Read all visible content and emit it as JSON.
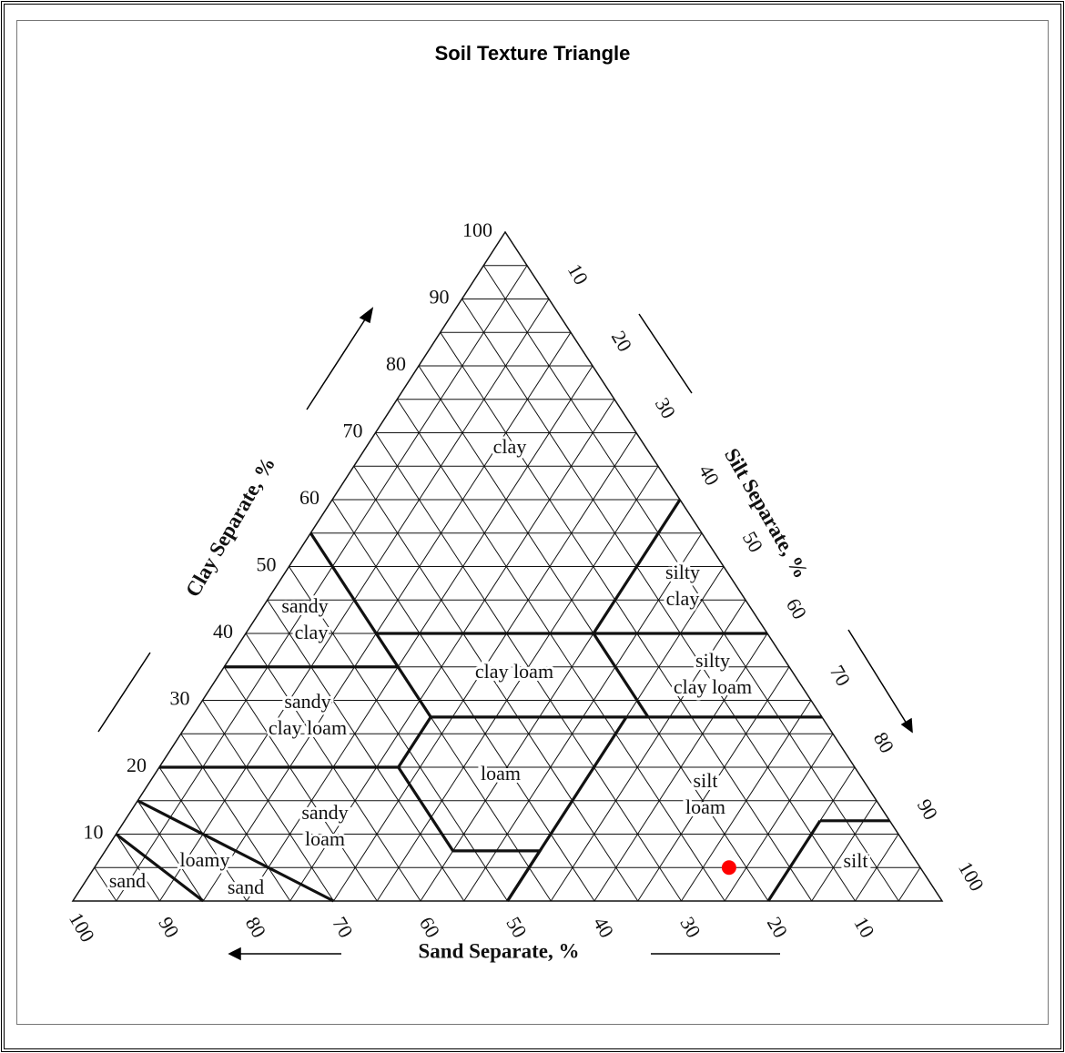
{
  "title": "Soil Texture Triangle",
  "axes": {
    "clay": {
      "label": "Clay Separate, %",
      "ticks": [
        100,
        90,
        80,
        70,
        60,
        50,
        40,
        30,
        20,
        10
      ]
    },
    "silt": {
      "label": "Silt Separate, %",
      "ticks": [
        10,
        20,
        30,
        40,
        50,
        60,
        70,
        80,
        90,
        100
      ]
    },
    "sand": {
      "label": "Sand Separate, %",
      "ticks": [
        100,
        90,
        80,
        70,
        60,
        50,
        40,
        30,
        20,
        10
      ]
    }
  },
  "regions": [
    {
      "lines": [
        "clay"
      ]
    },
    {
      "lines": [
        "silty",
        "clay"
      ]
    },
    {
      "lines": [
        "sandy",
        "clay"
      ]
    },
    {
      "lines": [
        "clay loam"
      ]
    },
    {
      "lines": [
        "silty",
        "clay loam"
      ]
    },
    {
      "lines": [
        "sandy",
        "clay loam"
      ]
    },
    {
      "lines": [
        "loam"
      ]
    },
    {
      "lines": [
        "silt",
        "loam"
      ]
    },
    {
      "lines": [
        "sandy",
        "loam"
      ]
    },
    {
      "lines": [
        "loamy",
        "sand"
      ]
    },
    {
      "lines": [
        "sand"
      ]
    },
    {
      "lines": [
        "silt"
      ]
    }
  ],
  "point": {
    "sand": 22,
    "clay": 5,
    "silt": 73,
    "color": "#ff0000"
  }
}
